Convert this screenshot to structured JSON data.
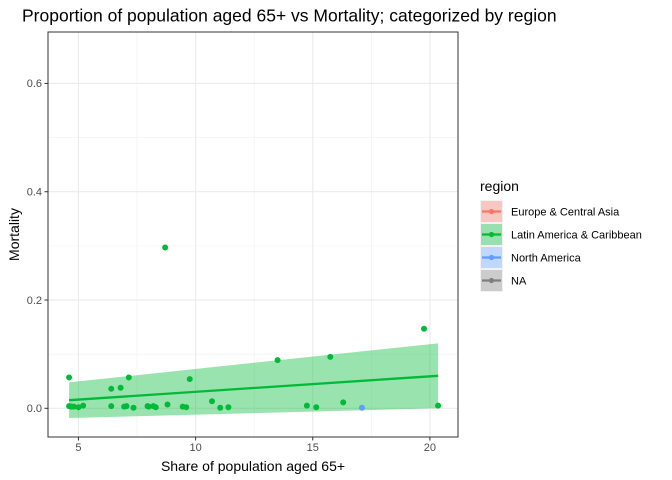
{
  "chart_data": {
    "type": "scatter",
    "title": "Proportion of population aged 65+ vs Mortality; categorized by region",
    "xlabel": "Share of population aged 65+",
    "ylabel": "Mortality",
    "xlim": [
      3.7,
      21.2
    ],
    "ylim": [
      -0.053,
      0.695
    ],
    "x_ticks": [
      5,
      10,
      15,
      20
    ],
    "x_tick_labels": [
      "5",
      "10",
      "15",
      "20"
    ],
    "y_ticks": [
      0.0,
      0.2,
      0.4,
      0.6
    ],
    "y_tick_labels": [
      "0.0",
      "0.2",
      "0.4",
      "0.6"
    ],
    "grid": true,
    "legend": {
      "title": "region",
      "position": "right",
      "entries": [
        {
          "label": "Europe & Central Asia",
          "color": "#F8766D",
          "fill": "#F8C7C2"
        },
        {
          "label": "Latin America & Caribbean",
          "color": "#00BA38",
          "fill": "#99E0AF"
        },
        {
          "label": "North America",
          "color": "#619CFF",
          "fill": "#C0D7FF"
        },
        {
          "label": "NA",
          "color": "#7F7F7F",
          "fill": "#CCCCCC"
        }
      ]
    },
    "series": [
      {
        "name": "Latin America & Caribbean",
        "color": "#00BA38",
        "points": [
          [
            4.6,
            0.057
          ],
          [
            4.6,
            0.004
          ],
          [
            4.7,
            0.003
          ],
          [
            4.8,
            0.003
          ],
          [
            5.0,
            0.002
          ],
          [
            5.2,
            0.005
          ],
          [
            6.4,
            0.036
          ],
          [
            6.4,
            0.004
          ],
          [
            6.8,
            0.038
          ],
          [
            6.95,
            0.003
          ],
          [
            7.05,
            0.004
          ],
          [
            7.15,
            0.057
          ],
          [
            7.35,
            0.001
          ],
          [
            7.95,
            0.004
          ],
          [
            8.0,
            0.003
          ],
          [
            8.2,
            0.004
          ],
          [
            8.3,
            0.002
          ],
          [
            8.7,
            0.297
          ],
          [
            8.8,
            0.007
          ],
          [
            9.45,
            0.003
          ],
          [
            9.6,
            0.002
          ],
          [
            9.75,
            0.054
          ],
          [
            10.7,
            0.013
          ],
          [
            11.05,
            0.001
          ],
          [
            11.4,
            0.002
          ],
          [
            13.5,
            0.089
          ],
          [
            14.75,
            0.005
          ],
          [
            15.15,
            0.002
          ],
          [
            15.75,
            0.095
          ],
          [
            16.3,
            0.011
          ],
          [
            19.75,
            0.147
          ],
          [
            20.35,
            0.005
          ]
        ],
        "fit": {
          "x": [
            4.6,
            20.35
          ],
          "y": [
            0.015,
            0.06
          ],
          "ci_lower": [
            -0.018,
            0.0
          ],
          "ci_upper": [
            0.048,
            0.12
          ]
        }
      },
      {
        "name": "North America",
        "color": "#619CFF",
        "points": [
          [
            17.1,
            0.001
          ]
        ]
      }
    ]
  }
}
